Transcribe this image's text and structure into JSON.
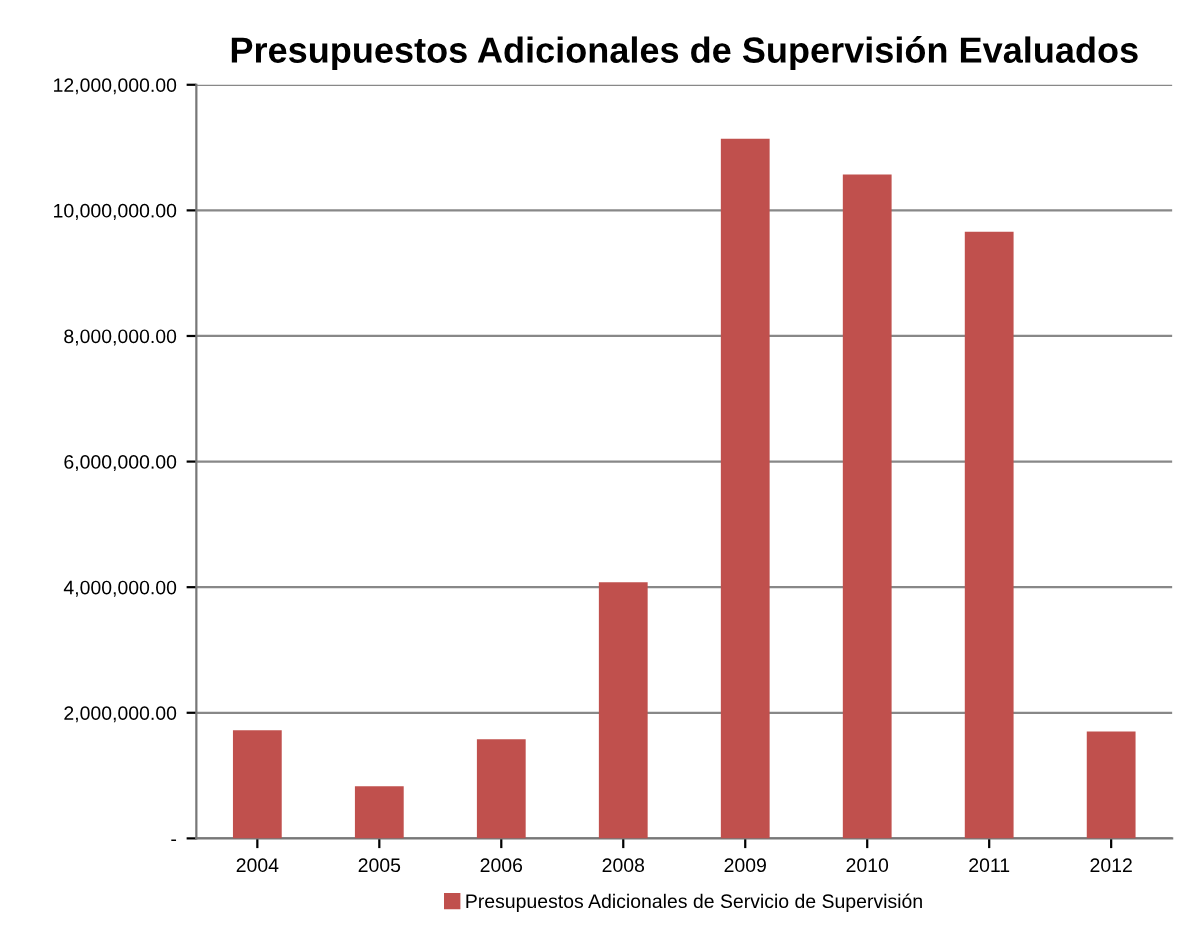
{
  "chart_data": {
    "type": "bar",
    "title": "Presupuestos Adicionales de Supervisión Evaluados",
    "categories": [
      "2004",
      "2005",
      "2006",
      "2008",
      "2009",
      "2010",
      "2011",
      "2012"
    ],
    "series": [
      {
        "name": "Presupuestos Adicionales de Servicio de Supervisión",
        "color": "#c0504d",
        "values": [
          1720000,
          830000,
          1580000,
          4080000,
          11140000,
          10570000,
          9660000,
          1700000
        ]
      }
    ],
    "ylim": [
      0,
      12000000
    ],
    "yticks": [
      {
        "value": 0,
        "label": "-"
      },
      {
        "value": 2000000,
        "label": "2,000,000.00"
      },
      {
        "value": 4000000,
        "label": "4,000,000.00"
      },
      {
        "value": 6000000,
        "label": "6,000,000.00"
      },
      {
        "value": 8000000,
        "label": "8,000,000.00"
      },
      {
        "value": 10000000,
        "label": "10,000,000.00"
      },
      {
        "value": 12000000,
        "label": "12,000,000.00"
      }
    ],
    "grid": "y",
    "legend": "bottom"
  }
}
